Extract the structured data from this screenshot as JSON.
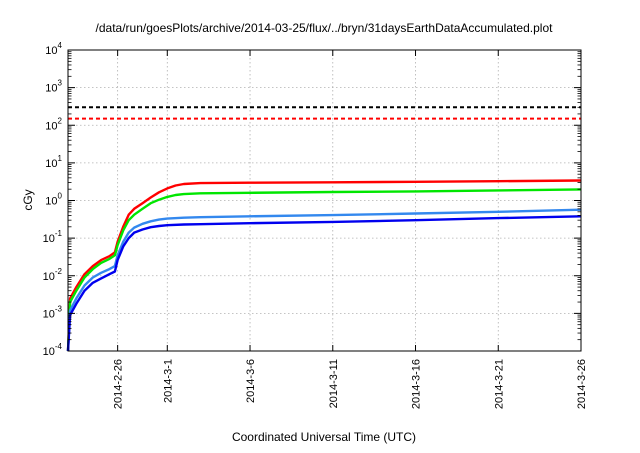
{
  "chart_data": {
    "type": "line",
    "title": "/data/run/goesPlots/archive/2014-03-25/flux/../bryn/31daysEarthDataAccumulated.plot",
    "xlabel": "Coordinated Universal Time (UTC)",
    "ylabel": "cGy",
    "y_scale": "log",
    "xlim": [
      "2014-02-23",
      "2014-03-26"
    ],
    "ylim": [
      0.0001,
      10000
    ],
    "grid": true,
    "x_ticks": [
      "2014-2-26",
      "2014-3-1",
      "2014-3-6",
      "2014-3-11",
      "2014-3-16",
      "2014-3-21",
      "2014-3-26"
    ],
    "x_tick_dates": [
      "2014-02-26",
      "2014-03-01",
      "2014-03-06",
      "2014-03-11",
      "2014-03-16",
      "2014-03-21",
      "2014-03-26"
    ],
    "y_ticks": [
      {
        "value": 0.0001,
        "base": "10",
        "exp": "-4"
      },
      {
        "value": 0.001,
        "base": "10",
        "exp": "-3"
      },
      {
        "value": 0.01,
        "base": "10",
        "exp": "-2"
      },
      {
        "value": 0.1,
        "base": "10",
        "exp": "-1"
      },
      {
        "value": 1,
        "base": "10",
        "exp": "0"
      },
      {
        "value": 10,
        "base": "10",
        "exp": "1"
      },
      {
        "value": 100,
        "base": "10",
        "exp": "2"
      },
      {
        "value": 1000,
        "base": "10",
        "exp": "3"
      },
      {
        "value": 10000,
        "base": "10",
        "exp": "4"
      }
    ],
    "reference_lines": [
      {
        "value": 300,
        "color": "#000000",
        "style": "dashed"
      },
      {
        "value": 150,
        "color": "#ff0000",
        "style": "dashed"
      }
    ],
    "series": [
      {
        "color": "#ff0000",
        "points": [
          [
            "2014-02-23T00:00",
            0.0001
          ],
          [
            "2014-02-23T03:00",
            0.0025
          ],
          [
            "2014-02-23T12:00",
            0.005
          ],
          [
            "2014-02-24T00:00",
            0.011
          ],
          [
            "2014-02-24T12:00",
            0.018
          ],
          [
            "2014-02-25T00:00",
            0.026
          ],
          [
            "2014-02-25T12:00",
            0.033
          ],
          [
            "2014-02-25T20:00",
            0.042
          ],
          [
            "2014-02-26T00:00",
            0.08
          ],
          [
            "2014-02-26T08:00",
            0.2
          ],
          [
            "2014-02-26T16:00",
            0.42
          ],
          [
            "2014-02-27T00:00",
            0.6
          ],
          [
            "2014-02-27T12:00",
            0.85
          ],
          [
            "2014-02-28T00:00",
            1.2
          ],
          [
            "2014-02-28T12:00",
            1.65
          ],
          [
            "2014-03-01T00:00",
            2.1
          ],
          [
            "2014-03-01T12:00",
            2.5
          ],
          [
            "2014-03-02T00:00",
            2.75
          ],
          [
            "2014-03-03T00:00",
            2.9
          ],
          [
            "2014-03-06T00:00",
            2.98
          ],
          [
            "2014-03-11T00:00",
            3.05
          ],
          [
            "2014-03-16T00:00",
            3.15
          ],
          [
            "2014-03-21T00:00",
            3.25
          ],
          [
            "2014-03-26T00:00",
            3.4
          ]
        ]
      },
      {
        "color": "#00e600",
        "points": [
          [
            "2014-02-23T00:00",
            0.0001
          ],
          [
            "2014-02-23T03:00",
            0.002
          ],
          [
            "2014-02-23T12:00",
            0.004
          ],
          [
            "2014-02-24T00:00",
            0.009
          ],
          [
            "2014-02-24T12:00",
            0.015
          ],
          [
            "2014-02-25T00:00",
            0.022
          ],
          [
            "2014-02-25T12:00",
            0.028
          ],
          [
            "2014-02-25T20:00",
            0.035
          ],
          [
            "2014-02-26T00:00",
            0.065
          ],
          [
            "2014-02-26T08:00",
            0.16
          ],
          [
            "2014-02-26T16:00",
            0.3
          ],
          [
            "2014-02-27T00:00",
            0.42
          ],
          [
            "2014-02-27T12:00",
            0.6
          ],
          [
            "2014-02-28T00:00",
            0.85
          ],
          [
            "2014-02-28T12:00",
            1.05
          ],
          [
            "2014-03-01T00:00",
            1.25
          ],
          [
            "2014-03-01T12:00",
            1.4
          ],
          [
            "2014-03-02T00:00",
            1.48
          ],
          [
            "2014-03-03T00:00",
            1.55
          ],
          [
            "2014-03-06T00:00",
            1.6
          ],
          [
            "2014-03-11T00:00",
            1.68
          ],
          [
            "2014-03-16T00:00",
            1.75
          ],
          [
            "2014-03-21T00:00",
            1.85
          ],
          [
            "2014-03-26T00:00",
            1.97
          ]
        ]
      },
      {
        "color": "#3388ee",
        "points": [
          [
            "2014-02-23T00:00",
            0.0001
          ],
          [
            "2014-02-23T03:00",
            0.0012
          ],
          [
            "2014-02-23T12:00",
            0.0025
          ],
          [
            "2014-02-24T00:00",
            0.0055
          ],
          [
            "2014-02-24T12:00",
            0.009
          ],
          [
            "2014-02-25T00:00",
            0.012
          ],
          [
            "2014-02-25T12:00",
            0.015
          ],
          [
            "2014-02-25T20:00",
            0.018
          ],
          [
            "2014-02-26T00:00",
            0.035
          ],
          [
            "2014-02-26T08:00",
            0.08
          ],
          [
            "2014-02-26T16:00",
            0.14
          ],
          [
            "2014-02-27T00:00",
            0.19
          ],
          [
            "2014-02-27T12:00",
            0.24
          ],
          [
            "2014-02-28T00:00",
            0.28
          ],
          [
            "2014-02-28T12:00",
            0.31
          ],
          [
            "2014-03-01T00:00",
            0.33
          ],
          [
            "2014-03-02T00:00",
            0.35
          ],
          [
            "2014-03-03T00:00",
            0.36
          ],
          [
            "2014-03-06T00:00",
            0.38
          ],
          [
            "2014-03-11T00:00",
            0.41
          ],
          [
            "2014-03-16T00:00",
            0.45
          ],
          [
            "2014-03-21T00:00",
            0.5
          ],
          [
            "2014-03-26T00:00",
            0.57
          ]
        ]
      },
      {
        "color": "#0000ee",
        "points": [
          [
            "2014-02-23T00:00",
            0.0001
          ],
          [
            "2014-02-23T03:00",
            0.0009
          ],
          [
            "2014-02-23T12:00",
            0.0018
          ],
          [
            "2014-02-24T00:00",
            0.004
          ],
          [
            "2014-02-24T12:00",
            0.0065
          ],
          [
            "2014-02-25T00:00",
            0.0085
          ],
          [
            "2014-02-25T12:00",
            0.011
          ],
          [
            "2014-02-25T20:00",
            0.013
          ],
          [
            "2014-02-26T00:00",
            0.026
          ],
          [
            "2014-02-26T08:00",
            0.06
          ],
          [
            "2014-02-26T16:00",
            0.1
          ],
          [
            "2014-02-27T00:00",
            0.14
          ],
          [
            "2014-02-27T12:00",
            0.17
          ],
          [
            "2014-02-28T00:00",
            0.195
          ],
          [
            "2014-02-28T12:00",
            0.21
          ],
          [
            "2014-03-01T00:00",
            0.22
          ],
          [
            "2014-03-02T00:00",
            0.23
          ],
          [
            "2014-03-03T00:00",
            0.235
          ],
          [
            "2014-03-06T00:00",
            0.25
          ],
          [
            "2014-03-11T00:00",
            0.27
          ],
          [
            "2014-03-16T00:00",
            0.3
          ],
          [
            "2014-03-21T00:00",
            0.34
          ],
          [
            "2014-03-26T00:00",
            0.38
          ]
        ]
      }
    ]
  }
}
